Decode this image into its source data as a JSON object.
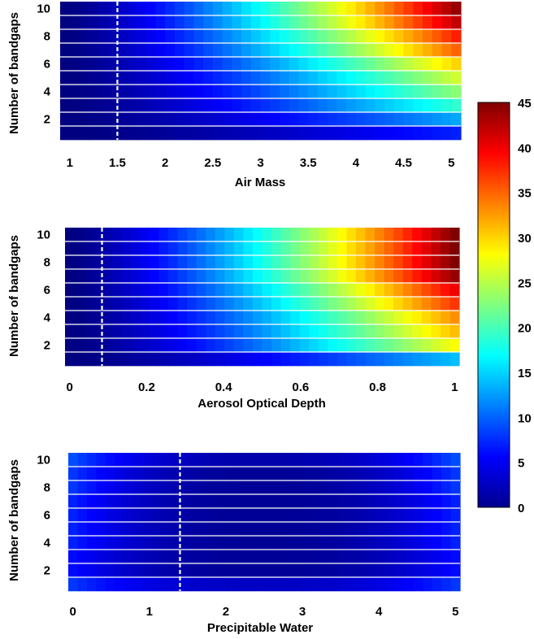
{
  "colorbar": {
    "ticks": [
      "0",
      "5",
      "10",
      "15",
      "20",
      "25",
      "30",
      "35",
      "40",
      "45"
    ],
    "min": 0,
    "max": 45,
    "colormap": "jet"
  },
  "chart_data": [
    {
      "type": "heatmap",
      "id": "air-mass",
      "xlabel": "Air Mass",
      "ylabel": "Number of bandgaps",
      "xlim": [
        0.9,
        5.1
      ],
      "x_ticks": [
        "1",
        "1.5",
        "2",
        "2.5",
        "3",
        "3.5",
        "4",
        "4.5",
        "5"
      ],
      "y_ticks": [
        "2",
        "4",
        "6",
        "8",
        "10"
      ],
      "n_rows": 10,
      "n_cols": 42,
      "reference_line_x": 1.5,
      "row_max_values": [
        7,
        13,
        19,
        23,
        26,
        30,
        35,
        38,
        42,
        44
      ],
      "clim": [
        0,
        45
      ]
    },
    {
      "type": "heatmap",
      "id": "aerosol-optical-depth",
      "xlabel": "Aerosol Optical Depth",
      "ylabel": "Number of bandgaps",
      "xlim": [
        -0.012,
        1.012
      ],
      "x_ticks": [
        "0",
        "0.2",
        "0.4",
        "0.6",
        "0.8",
        "1"
      ],
      "y_ticks": [
        "2",
        "4",
        "6",
        "8",
        "10"
      ],
      "n_rows": 10,
      "n_cols": 42,
      "reference_line_x": 0.084,
      "row_max_values": [
        14,
        28,
        31,
        33,
        37,
        40,
        44,
        45,
        45,
        45
      ],
      "clim": [
        0,
        45
      ]
    },
    {
      "type": "heatmap",
      "id": "precipitable-water",
      "xlabel": "Precipitable Water",
      "ylabel": "Number of bandgaps",
      "xlim": [
        -0.06,
        5.06
      ],
      "x_ticks": [
        "0",
        "1",
        "2",
        "3",
        "4",
        "5"
      ],
      "y_ticks": [
        "2",
        "4",
        "6",
        "8",
        "10"
      ],
      "n_rows": 10,
      "n_cols": 42,
      "reference_line_x": 1.4,
      "row_max_values": [
        8,
        6,
        6,
        7,
        7,
        7,
        7,
        8,
        8,
        9
      ],
      "row_min_values": [
        3,
        1,
        1,
        1,
        1,
        1,
        1,
        1,
        1,
        2
      ],
      "clim": [
        0,
        45
      ]
    }
  ]
}
